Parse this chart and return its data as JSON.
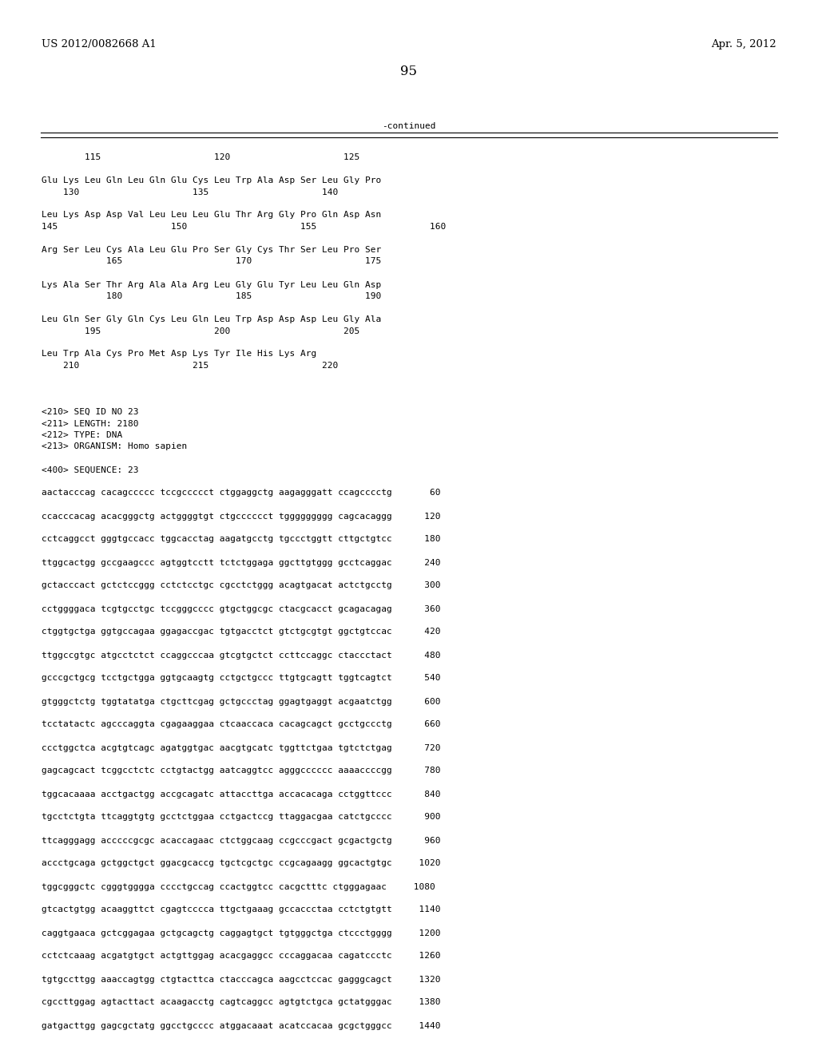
{
  "header_left": "US 2012/0082668 A1",
  "header_right": "Apr. 5, 2012",
  "page_number": "95",
  "continued_label": "-continued",
  "background_color": "#ffffff",
  "text_color": "#000000",
  "content_lines": [
    "        115                     120                     125",
    "",
    "Glu Lys Leu Gln Leu Gln Glu Cys Leu Trp Ala Asp Ser Leu Gly Pro",
    "    130                     135                     140",
    "",
    "Leu Lys Asp Asp Val Leu Leu Leu Glu Thr Arg Gly Pro Gln Asp Asn",
    "145                     150                     155                     160",
    "",
    "Arg Ser Leu Cys Ala Leu Glu Pro Ser Gly Cys Thr Ser Leu Pro Ser",
    "            165                     170                     175",
    "",
    "Lys Ala Ser Thr Arg Ala Ala Arg Leu Gly Glu Tyr Leu Leu Gln Asp",
    "            180                     185                     190",
    "",
    "Leu Gln Ser Gly Gln Cys Leu Gln Leu Trp Asp Asp Asp Leu Gly Ala",
    "        195                     200                     205",
    "",
    "Leu Trp Ala Cys Pro Met Asp Lys Tyr Ile His Lys Arg",
    "    210                     215                     220",
    "",
    "",
    "",
    "<210> SEQ ID NO 23",
    "<211> LENGTH: 2180",
    "<212> TYPE: DNA",
    "<213> ORGANISM: Homo sapien",
    "",
    "<400> SEQUENCE: 23",
    "",
    "aactacccag cacagccccc tccgccccct ctggaggctg aagagggatt ccagcccctg       60",
    "",
    "ccacccacag acacgggctg actggggtgt ctgcccccct tggggggggg cagcacaggg      120",
    "",
    "cctcaggcct gggtgccacc tggcacctag aagatgcctg tgccctggtt cttgctgtcc      180",
    "",
    "ttggcactgg gccgaagccc agtggtcctt tctctggaga ggcttgtggg gcctcaggac      240",
    "",
    "gctacccact gctctccggg cctctcctgc cgcctctggg acagtgacat actctgcctg      300",
    "",
    "cctggggaca tcgtgcctgc tccgggcccc gtgctggcgc ctacgcacct gcagacagag      360",
    "",
    "ctggtgctga ggtgccagaa ggagaccgac tgtgacctct gtctgcgtgt ggctgtccac      420",
    "",
    "ttggccgtgc atgcctctct ccaggcccaa gtcgtgctct ccttccaggc ctaccctact      480",
    "",
    "gcccgctgcg tcctgctgga ggtgcaagtg cctgctgccc ttgtgcagtt tggtcagtct      540",
    "",
    "gtgggctctg tggtatatga ctgcttcgag gctgccctag ggagtgaggt acgaatctgg      600",
    "",
    "tcctatactc agcccaggta cgagaaggaa ctcaaccaca cacagcagct gcctgccctg      660",
    "",
    "ccctggctca acgtgtcagc agatggtgac aacgtgcatc tggttctgaa tgtctctgag      720",
    "",
    "gagcagcact tcggcctctc cctgtactgg aatcaggtcc agggcccccc aaaaccccgg      780",
    "",
    "tggcacaaaa acctgactgg accgcagatc attaccttga accacacaga cctggttccc      840",
    "",
    "tgcctctgta ttcaggtgtg gcctctggaa cctgactccg ttaggacgaa catctgcccc      900",
    "",
    "ttcagggagg acccccgcgc acaccagaac ctctggcaag ccgcccgact gcgactgctg      960",
    "",
    "accctgcaga gctggctgct ggacgcaccg tgctcgctgc ccgcagaagg ggcactgtgc     1020",
    "",
    "tggcgggctc cgggtgggga cccctgccag ccactggtcc cacgctttc ctgggagaac     1080",
    "",
    "gtcactgtgg acaaggttct cgagtcccca ttgctgaaag gccaccctaa cctctgtgtt     1140",
    "",
    "caggtgaaca gctcggagaa gctgcagctg caggagtgct tgtgggctga ctccctgggg     1200",
    "",
    "cctctcaaag acgatgtgct actgttggag acacgaggcc cccaggacaa cagatccctc     1260",
    "",
    "tgtgccttgg aaaccagtgg ctgtacttca ctacccagca aagcctccac gagggcagct     1320",
    "",
    "cgccttggag agtacttact acaagacctg cagtcaggcc agtgtctgca gctatgggac     1380",
    "",
    "gatgacttgg gagcgctatg ggcctgcccc atggacaaat acatccacaa gcgctgggcc     1440"
  ]
}
